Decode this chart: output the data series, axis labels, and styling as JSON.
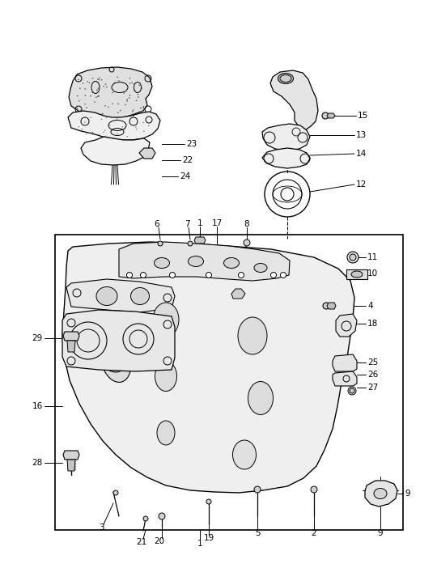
{
  "bg_color": "#ffffff",
  "line_color": "#000000",
  "fig_width": 5.4,
  "fig_height": 7.02,
  "dpi": 100
}
